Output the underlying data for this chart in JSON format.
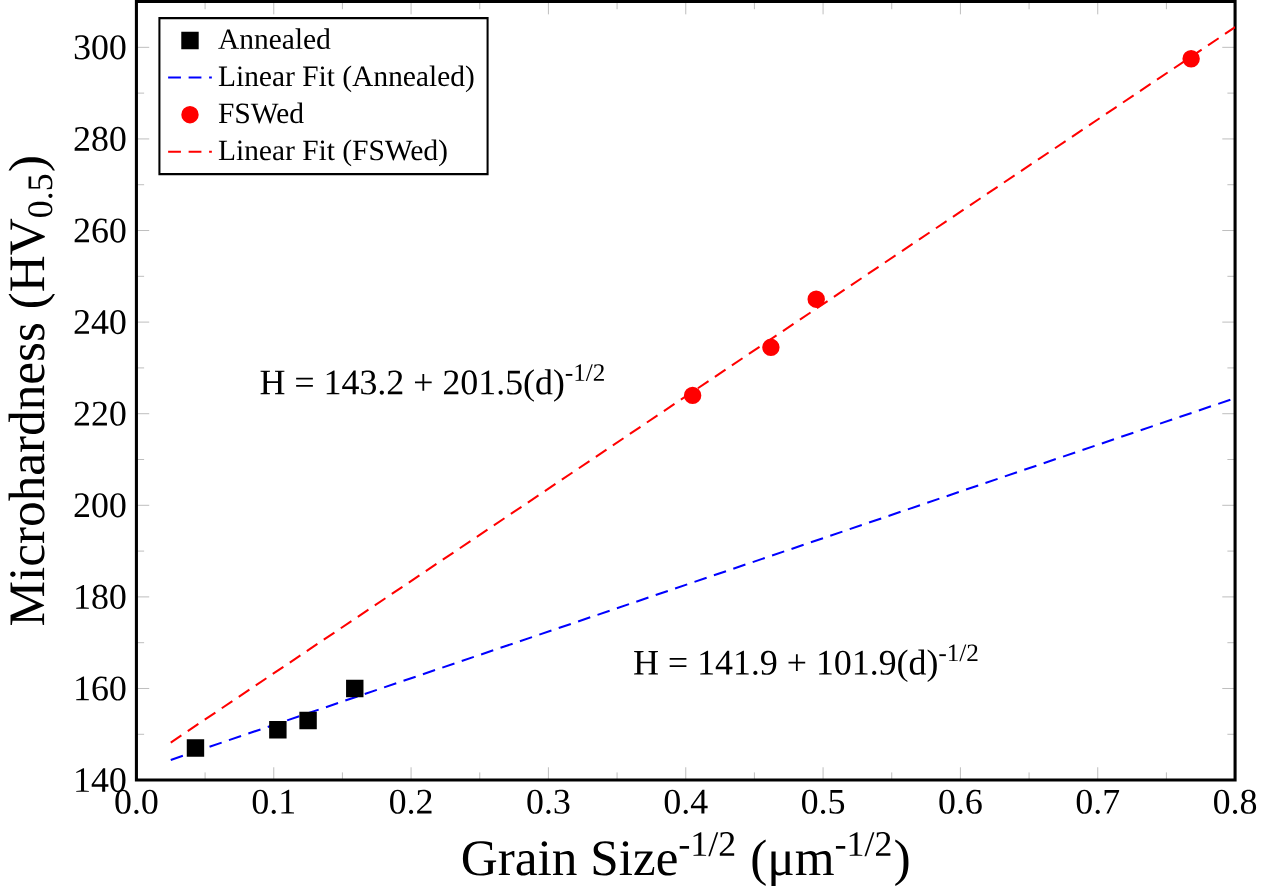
{
  "chart_data": {
    "type": "scatter",
    "xlabel": "Grain Size$^{-1/2}$ (μm$^{-1/2}$)",
    "ylabel": "Microhardness (HV$_{0.5}$)",
    "xlim": [
      0,
      0.8
    ],
    "ylim": [
      140,
      310
    ],
    "xticks": [
      {
        "value": 0,
        "label": "0.0"
      },
      0.1,
      0.2,
      0.3,
      0.4,
      0.5,
      0.6,
      0.7,
      0.8
    ],
    "yticks": [
      140,
      160,
      180,
      200,
      220,
      240,
      260,
      280,
      300
    ],
    "grid": false,
    "legend": "top left",
    "series": [
      {
        "name": "Annealed",
        "marker": "square",
        "color": "#000000",
        "x": [
          0.043,
          0.103,
          0.125,
          0.159
        ],
        "values": [
          147,
          151,
          153,
          160
        ]
      },
      {
        "name": "Linear Fit (Annealed)",
        "type": "line",
        "marker": "none",
        "line_style": "dashed",
        "color": "#0000ff",
        "x": [
          0.025,
          0.8
        ],
        "values": [
          144.4,
          223.4
        ]
      },
      {
        "name": "FSWed",
        "marker": "circle",
        "color": "#ff0000",
        "x": [
          0.405,
          0.462,
          0.495,
          0.768
        ],
        "values": [
          224,
          234.5,
          245,
          297.5
        ]
      },
      {
        "name": "Linear Fit (FSWed)",
        "type": "line",
        "marker": "none",
        "line_style": "dashed",
        "color": "#ff0000",
        "x": [
          0.025,
          0.8
        ],
        "values": [
          148.2,
          304.4
        ]
      }
    ],
    "annotations": [
      "H = 143.2 + 201.5(d)$^{-1/2}$",
      "H = 141.9 + 101.9(d)$^{-1/2}$"
    ]
  }
}
